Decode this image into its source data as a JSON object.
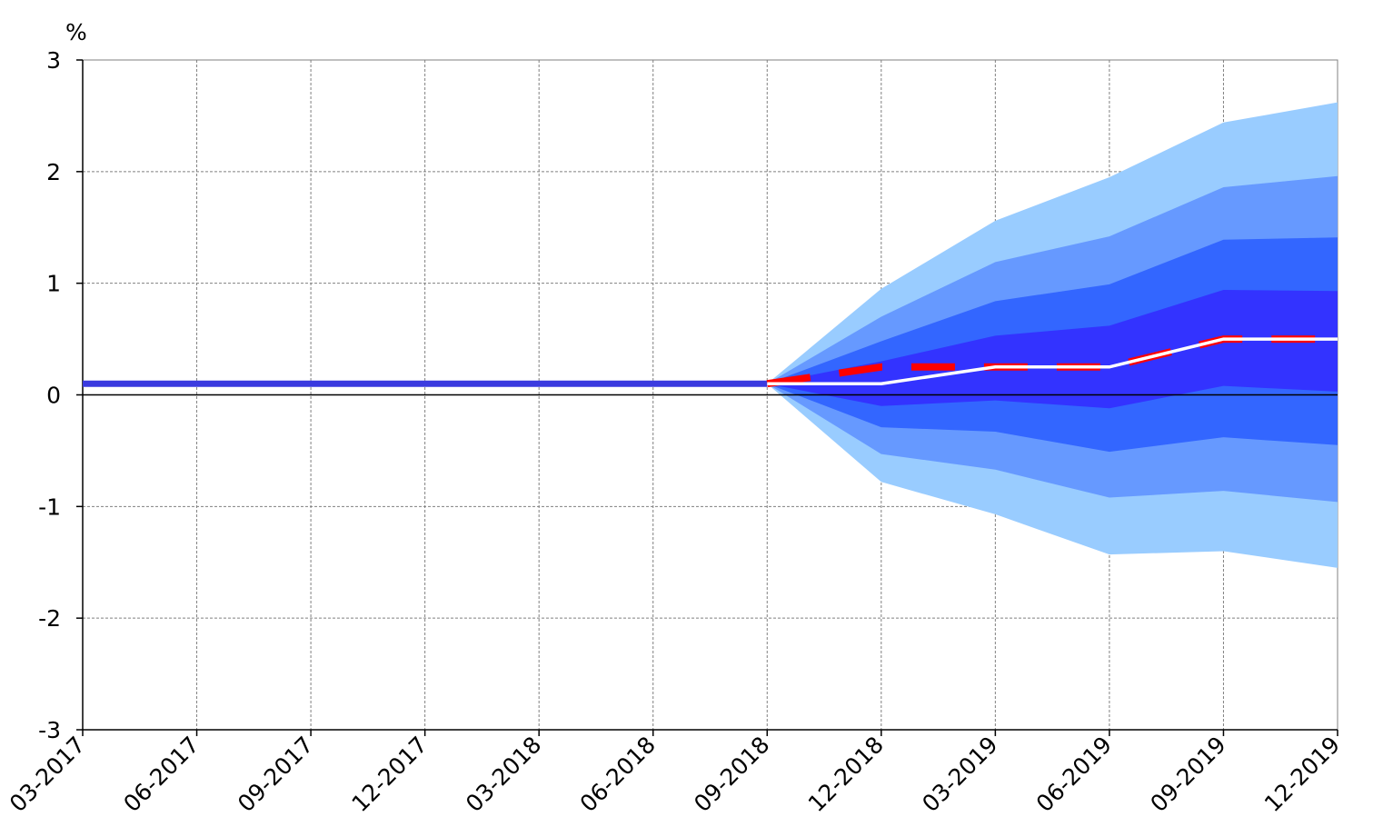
{
  "chart_data": {
    "type": "area",
    "title": "",
    "xlabel": "",
    "ylabel": "%",
    "ylim": [
      -3,
      3
    ],
    "yticks": [
      -3,
      -2,
      -1,
      0,
      1,
      2,
      3
    ],
    "grid": true,
    "legend": "none",
    "categories": [
      "03-2017",
      "06-2017",
      "09-2017",
      "12-2017",
      "03-2018",
      "06-2018",
      "09-2018",
      "12-2018",
      "03-2019",
      "06-2019",
      "09-2019",
      "12-2019"
    ],
    "history": {
      "name": "",
      "x": [
        "03-2017",
        "06-2017",
        "09-2017",
        "12-2017",
        "03-2018",
        "06-2018",
        "09-2018"
      ],
      "values": [
        0.1,
        0.1,
        0.1,
        0.1,
        0.1,
        0.1,
        0.1
      ]
    },
    "fan": {
      "x": [
        "09-2018",
        "12-2018",
        "03-2019",
        "06-2019",
        "09-2019",
        "12-2019"
      ],
      "bands": [
        {
          "lower": [
            0.1,
            -0.78,
            -1.07,
            -1.43,
            -1.4,
            -1.55
          ],
          "upper": [
            0.1,
            0.95,
            1.56,
            1.95,
            2.44,
            2.62
          ]
        },
        {
          "lower": [
            0.1,
            -0.53,
            -0.67,
            -0.92,
            -0.86,
            -0.96
          ],
          "upper": [
            0.1,
            0.7,
            1.19,
            1.42,
            1.86,
            1.96
          ]
        },
        {
          "lower": [
            0.1,
            -0.29,
            -0.33,
            -0.51,
            -0.38,
            -0.45
          ],
          "upper": [
            0.1,
            0.48,
            0.84,
            0.99,
            1.39,
            1.41
          ]
        },
        {
          "lower": [
            0.1,
            -0.1,
            -0.05,
            -0.12,
            0.08,
            0.03
          ],
          "upper": [
            0.1,
            0.3,
            0.53,
            0.62,
            0.94,
            0.93
          ]
        }
      ]
    },
    "series": [
      {
        "name": "",
        "x": [
          "09-2018",
          "12-2018",
          "03-2019",
          "06-2019",
          "09-2019",
          "12-2019"
        ],
        "values": [
          0.1,
          0.25,
          0.25,
          0.25,
          0.5,
          0.5
        ]
      },
      {
        "name": "",
        "x": [
          "09-2018",
          "12-2018",
          "03-2019",
          "06-2019",
          "09-2019",
          "12-2019"
        ],
        "values": [
          0.1,
          0.1,
          0.25,
          0.25,
          0.5,
          0.5
        ]
      }
    ],
    "colors": {
      "band_outer": "#99ccff",
      "band_2": "#6699ff",
      "band_3": "#3366ff",
      "band_inner": "#3333ff",
      "history_line": "#3a3adf",
      "dashed_line": "#ff0000",
      "median_line": "#ffffff",
      "grid": "#808080",
      "axis": "#000000"
    }
  }
}
